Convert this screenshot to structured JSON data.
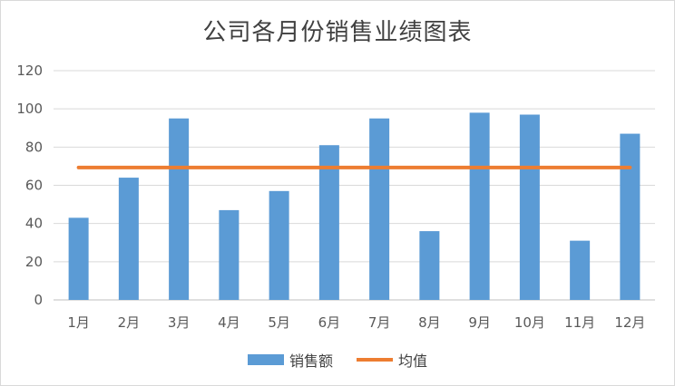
{
  "chart_data": {
    "type": "bar",
    "title": "公司各月份销售业绩图表",
    "categories": [
      "1月",
      "2月",
      "3月",
      "4月",
      "5月",
      "6月",
      "7月",
      "8月",
      "9月",
      "10月",
      "11月",
      "12月"
    ],
    "series": [
      {
        "name": "销售额",
        "type": "bar",
        "color": "#5b9bd5",
        "values": [
          43,
          64,
          95,
          47,
          57,
          81,
          95,
          36,
          98,
          97,
          31,
          87
        ]
      },
      {
        "name": "均值",
        "type": "line",
        "color": "#ed7d31",
        "values": [
          69.3,
          69.3,
          69.3,
          69.3,
          69.3,
          69.3,
          69.3,
          69.3,
          69.3,
          69.3,
          69.3,
          69.3
        ]
      }
    ],
    "ylim": [
      0,
      120
    ],
    "yticks": [
      0,
      20,
      40,
      60,
      80,
      100,
      120
    ],
    "grid": true,
    "legend_position": "bottom"
  }
}
